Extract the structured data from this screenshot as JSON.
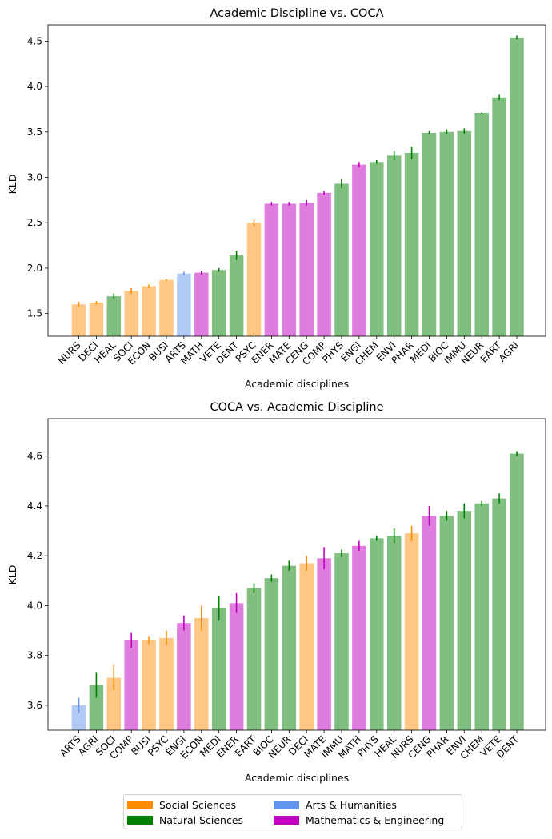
{
  "colors": {
    "social": "#ff8c00",
    "natural": "#008000",
    "arts": "#6495ed",
    "math": "#c000c0"
  },
  "legend": [
    {
      "label": "Social Sciences",
      "group": "social"
    },
    {
      "label": "Natural Sciences",
      "group": "natural"
    },
    {
      "label": "Arts & Humanities",
      "group": "arts"
    },
    {
      "label": "Mathematics & Engineering",
      "group": "math"
    }
  ],
  "chart_data": [
    {
      "type": "bar",
      "title": "Academic Discipline vs. COCA",
      "xlabel": "Academic disciplines",
      "ylabel": "KLD",
      "ylim": [
        1.25,
        4.68
      ],
      "yticks": [
        "1.5",
        "2.0",
        "2.5",
        "3.0",
        "3.5",
        "4.0",
        "4.5"
      ],
      "categories": [
        "NURS",
        "DECI",
        "HEAL",
        "SOCI",
        "ECON",
        "BUSI",
        "ARTS",
        "MATH",
        "VETE",
        "DENT",
        "PSYC",
        "ENER",
        "MATE",
        "CENG",
        "COMP",
        "PHYS",
        "ENGI",
        "CHEM",
        "ENVI",
        "PHAR",
        "MEDI",
        "BIOC",
        "IMMU",
        "NEUR",
        "EART",
        "AGRI"
      ],
      "groups": [
        "social",
        "social",
        "natural",
        "social",
        "social",
        "social",
        "arts",
        "math",
        "natural",
        "natural",
        "social",
        "math",
        "math",
        "math",
        "math",
        "natural",
        "math",
        "natural",
        "natural",
        "natural",
        "natural",
        "natural",
        "natural",
        "natural",
        "natural",
        "natural"
      ],
      "values": [
        1.6,
        1.62,
        1.69,
        1.75,
        1.8,
        1.87,
        1.94,
        1.95,
        1.98,
        2.14,
        2.5,
        2.71,
        2.71,
        2.72,
        2.83,
        2.93,
        3.14,
        3.17,
        3.24,
        3.27,
        3.49,
        3.5,
        3.51,
        3.71,
        3.88,
        4.54
      ],
      "errors": [
        0.03,
        0.02,
        0.03,
        0.03,
        0.02,
        0.01,
        0.02,
        0.02,
        0.02,
        0.05,
        0.04,
        0.02,
        0.02,
        0.03,
        0.02,
        0.05,
        0.03,
        0.02,
        0.05,
        0.07,
        0.02,
        0.03,
        0.03,
        0.005,
        0.03,
        0.02
      ]
    },
    {
      "type": "bar",
      "title": "COCA vs. Academic Discipline",
      "xlabel": "Academic disciplines",
      "ylabel": "KLD",
      "ylim": [
        3.5,
        4.75
      ],
      "yticks": [
        "3.6",
        "3.8",
        "4.0",
        "4.2",
        "4.4",
        "4.6"
      ],
      "categories": [
        "ARTS",
        "AGRI",
        "SOCI",
        "COMP",
        "BUSI",
        "PSYC",
        "ENGI",
        "ECON",
        "MEDI",
        "ENER",
        "EART",
        "BIOC",
        "NEUR",
        "DECI",
        "MATE",
        "IMMU",
        "MATH",
        "PHYS",
        "HEAL",
        "NURS",
        "CENG",
        "PHAR",
        "ENVI",
        "CHEM",
        "VETE",
        "DENT"
      ],
      "groups": [
        "arts",
        "natural",
        "social",
        "math",
        "social",
        "social",
        "math",
        "social",
        "natural",
        "math",
        "natural",
        "natural",
        "natural",
        "social",
        "math",
        "natural",
        "math",
        "natural",
        "natural",
        "social",
        "math",
        "natural",
        "natural",
        "natural",
        "natural",
        "natural"
      ],
      "values": [
        3.6,
        3.68,
        3.71,
        3.86,
        3.86,
        3.87,
        3.93,
        3.95,
        3.99,
        4.01,
        4.07,
        4.11,
        4.16,
        4.17,
        4.19,
        4.21,
        4.24,
        4.27,
        4.28,
        4.29,
        4.36,
        4.36,
        4.38,
        4.41,
        4.43,
        4.61
      ],
      "errors": [
        0.03,
        0.05,
        0.05,
        0.03,
        0.015,
        0.03,
        0.03,
        0.05,
        0.05,
        0.04,
        0.02,
        0.015,
        0.02,
        0.03,
        0.045,
        0.015,
        0.02,
        0.01,
        0.03,
        0.03,
        0.04,
        0.02,
        0.03,
        0.01,
        0.02,
        0.01
      ]
    }
  ]
}
